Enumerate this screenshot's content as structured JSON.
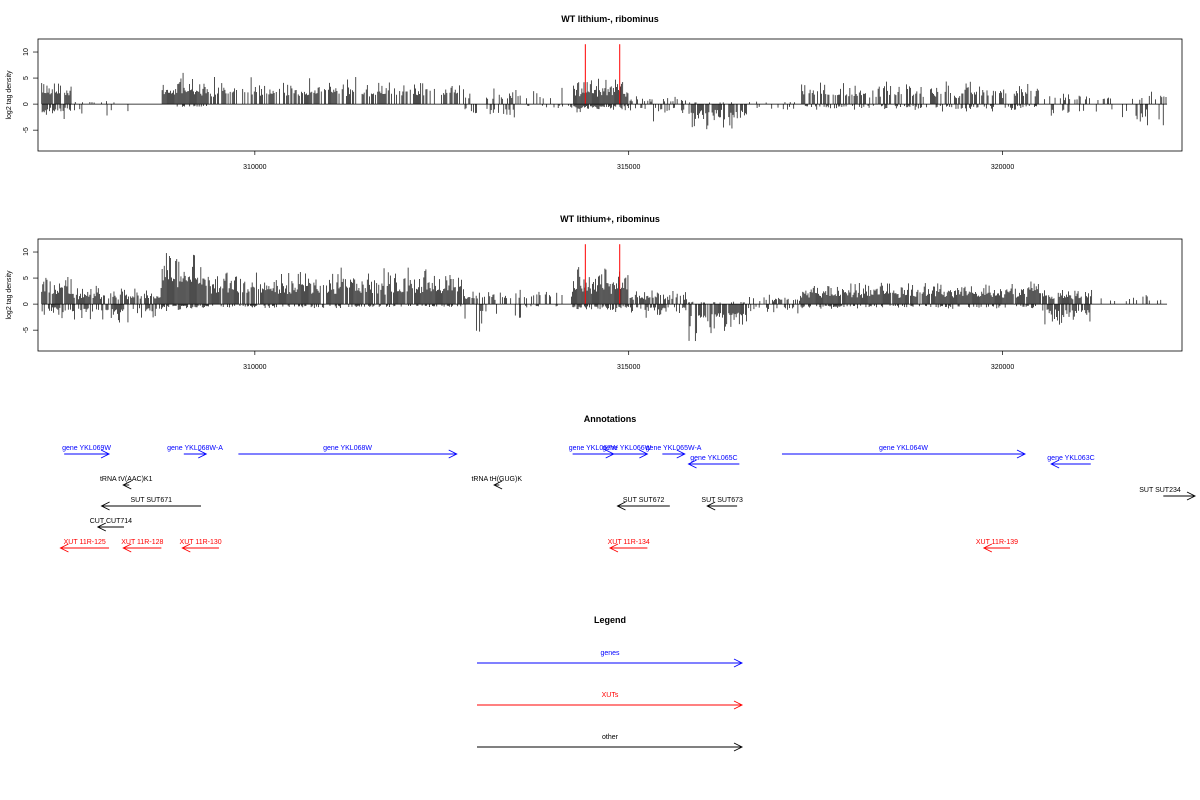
{
  "colors": {
    "gene": "#0000ff",
    "xut": "#ff0000",
    "other": "#000000",
    "marker": "#ff0000"
  },
  "chart_data": [
    {
      "type": "bar",
      "title": "WT lithium-, ribominus",
      "ylabel": "log2 tag density",
      "xlim": [
        307100,
        322400
      ],
      "ylim": [
        -9,
        12.5
      ],
      "xticks": [
        310000,
        315000,
        320000
      ],
      "yticks": [
        -5,
        0,
        5,
        10
      ],
      "markers": [
        314420,
        314880
      ],
      "segments": [
        {
          "from": 307150,
          "to": 307550,
          "pos": 5,
          "neg": 3.5,
          "density": 0.8
        },
        {
          "from": 307550,
          "to": 308400,
          "pos": 0.6,
          "neg": 3.5,
          "density": 0.15
        },
        {
          "from": 308750,
          "to": 309350,
          "pos": 6,
          "neg": 0.7,
          "density": 1
        },
        {
          "from": 309350,
          "to": 312800,
          "pos": 5.2,
          "neg": 0.3,
          "density": 0.6
        },
        {
          "from": 312800,
          "to": 313500,
          "pos": 3,
          "neg": 3.5,
          "density": 0.3
        },
        {
          "from": 313500,
          "to": 314250,
          "pos": 3.5,
          "neg": 1.5,
          "density": 0.3
        },
        {
          "from": 314250,
          "to": 315000,
          "pos": 5.5,
          "neg": 1.8,
          "density": 1
        },
        {
          "from": 315000,
          "to": 315800,
          "pos": 1.5,
          "neg": 3.5,
          "density": 0.4
        },
        {
          "from": 315800,
          "to": 316600,
          "pos": 0.4,
          "neg": 5.5,
          "density": 1
        },
        {
          "from": 316600,
          "to": 317300,
          "pos": 0.5,
          "neg": 2.5,
          "density": 0.3
        },
        {
          "from": 317300,
          "to": 320500,
          "pos": 4.4,
          "neg": 1.5,
          "density": 0.55
        },
        {
          "from": 320500,
          "to": 322200,
          "pos": 2.5,
          "neg": 4.8,
          "density": 0.3
        }
      ]
    },
    {
      "type": "bar",
      "title": "WT lithium+, ribominus",
      "ylabel": "log2 tag density",
      "xlim": [
        307100,
        322400
      ],
      "ylim": [
        -9,
        12.5
      ],
      "xticks": [
        310000,
        315000,
        320000
      ],
      "yticks": [
        -5,
        0,
        5,
        10
      ],
      "markers": [
        314420,
        314880
      ],
      "segments": [
        {
          "from": 307150,
          "to": 307550,
          "pos": 6,
          "neg": 3,
          "density": 0.9
        },
        {
          "from": 307550,
          "to": 308750,
          "pos": 3.5,
          "neg": 4,
          "density": 0.8
        },
        {
          "from": 308750,
          "to": 309350,
          "pos": 11.5,
          "neg": 1.5,
          "density": 1
        },
        {
          "from": 309350,
          "to": 312800,
          "pos": 7,
          "neg": 0.8,
          "density": 0.9
        },
        {
          "from": 312800,
          "to": 313600,
          "pos": 3,
          "neg": 6.5,
          "density": 0.4
        },
        {
          "from": 313600,
          "to": 314250,
          "pos": 3.5,
          "neg": 1,
          "density": 0.4
        },
        {
          "from": 314250,
          "to": 315000,
          "pos": 7.5,
          "neg": 2,
          "density": 1
        },
        {
          "from": 315000,
          "to": 315800,
          "pos": 3,
          "neg": 3,
          "density": 0.7
        },
        {
          "from": 315800,
          "to": 316600,
          "pos": 0.5,
          "neg": 8,
          "density": 1
        },
        {
          "from": 316600,
          "to": 317300,
          "pos": 2,
          "neg": 2.5,
          "density": 0.4
        },
        {
          "from": 317300,
          "to": 320500,
          "pos": 4.5,
          "neg": 1,
          "density": 0.95
        },
        {
          "from": 320500,
          "to": 321200,
          "pos": 3.5,
          "neg": 5,
          "density": 0.8
        },
        {
          "from": 321200,
          "to": 322200,
          "pos": 1.8,
          "neg": 0.2,
          "density": 0.15
        }
      ]
    }
  ],
  "annotations": {
    "title": "Annotations",
    "features": [
      {
        "label": "gene YKL069W",
        "kind": "gene",
        "start": 307450,
        "end": 308050,
        "dir": "+",
        "row": 0
      },
      {
        "label": "gene YKL068W-A",
        "kind": "gene",
        "start": 309050,
        "end": 309350,
        "dir": "+",
        "row": 0
      },
      {
        "label": "gene YKL068W",
        "kind": "gene",
        "start": 309780,
        "end": 312700,
        "dir": "+",
        "row": 0
      },
      {
        "label": "gene YKL067W",
        "kind": "gene",
        "start": 314250,
        "end": 314800,
        "dir": "+",
        "row": 0
      },
      {
        "label": "gene YKL066W",
        "kind": "gene",
        "start": 314700,
        "end": 315250,
        "dir": "+",
        "row": 0
      },
      {
        "label": "gene YKL065W-A",
        "kind": "gene",
        "start": 315450,
        "end": 315750,
        "dir": "+",
        "row": 0
      },
      {
        "label": "gene YKL065C",
        "kind": "gene",
        "start": 315800,
        "end": 316480,
        "dir": "-",
        "row": 1
      },
      {
        "label": "gene YKL064W",
        "kind": "gene",
        "start": 317050,
        "end": 320300,
        "dir": "+",
        "row": 0
      },
      {
        "label": "gene YKL063C",
        "kind": "gene",
        "start": 320650,
        "end": 321180,
        "dir": "-",
        "row": 1
      },
      {
        "label": "tRNA tV(AAC)K1",
        "kind": "other",
        "start": 308240,
        "end": 308320,
        "dir": "-",
        "row": 2
      },
      {
        "label": "tRNA tH(GUG)K",
        "kind": "other",
        "start": 313200,
        "end": 313270,
        "dir": "-",
        "row": 2
      },
      {
        "label": "SUT SUT234",
        "kind": "other",
        "start": 322150,
        "end": 322650,
        "dir": "+",
        "row": 3
      },
      {
        "label": "SUT SUT671",
        "kind": "other",
        "start": 307950,
        "end": 309280,
        "dir": "-",
        "row": 4
      },
      {
        "label": "SUT SUT672",
        "kind": "other",
        "start": 314850,
        "end": 315550,
        "dir": "-",
        "row": 4
      },
      {
        "label": "SUT SUT673",
        "kind": "other",
        "start": 316050,
        "end": 316450,
        "dir": "-",
        "row": 4
      },
      {
        "label": "CUT CUT714",
        "kind": "other",
        "start": 307900,
        "end": 308250,
        "dir": "-",
        "row": 5
      },
      {
        "label": "XUT 11R-125",
        "kind": "xut",
        "start": 307400,
        "end": 308050,
        "dir": "-",
        "row": 6
      },
      {
        "label": "XUT 11R-128",
        "kind": "xut",
        "start": 308240,
        "end": 308750,
        "dir": "-",
        "row": 6
      },
      {
        "label": "XUT 11R-130",
        "kind": "xut",
        "start": 309030,
        "end": 309520,
        "dir": "-",
        "row": 6
      },
      {
        "label": "XUT 11R-134",
        "kind": "xut",
        "start": 314750,
        "end": 315250,
        "dir": "-",
        "row": 6
      },
      {
        "label": "XUT 11R-139",
        "kind": "xut",
        "start": 319750,
        "end": 320100,
        "dir": "-",
        "row": 6
      }
    ]
  },
  "legend": {
    "title": "Legend",
    "items": [
      {
        "label": "genes",
        "kind": "gene"
      },
      {
        "label": "XUTs",
        "kind": "xut"
      },
      {
        "label": "other",
        "kind": "other"
      }
    ]
  }
}
